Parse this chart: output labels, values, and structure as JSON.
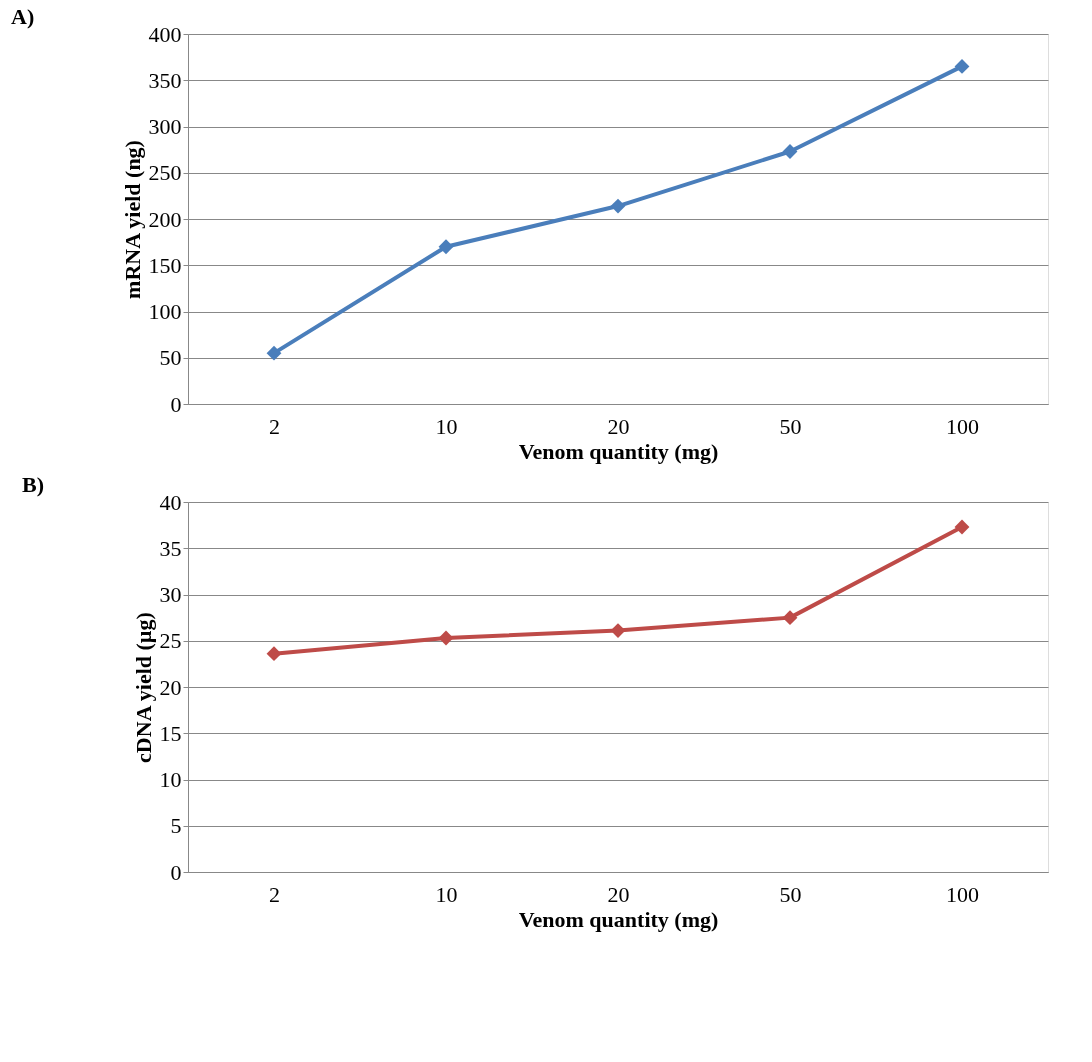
{
  "chart_data": [
    {
      "type": "line",
      "annotations": [
        "A)"
      ],
      "xlabel": "Venom quantity  (mg)",
      "ylabel": "mRNA yield (ng)",
      "categories": [
        "2",
        "10",
        "20",
        "50",
        "100"
      ],
      "series": [
        {
          "color": "#4a7ebb",
          "values": [
            55,
            170,
            214,
            273,
            365
          ]
        }
      ],
      "ylim": [
        0,
        400
      ],
      "yticks": [
        0,
        50,
        100,
        150,
        200,
        250,
        300,
        350,
        400
      ],
      "grid": "y",
      "legend": false,
      "marker": "diamond",
      "line_style": "solid"
    },
    {
      "type": "line",
      "annotations": [
        "B)"
      ],
      "xlabel": "Venom quantity  (mg)",
      "ylabel": "cDNA yield (µg)",
      "categories": [
        "2",
        "10",
        "20",
        "50",
        "100"
      ],
      "series": [
        {
          "color": "#be4b48",
          "values": [
            23.6,
            25.3,
            26.1,
            27.5,
            37.3
          ]
        }
      ],
      "ylim": [
        0,
        40
      ],
      "yticks": [
        0,
        5,
        10,
        15,
        20,
        25,
        30,
        35,
        40
      ],
      "grid": "y",
      "legend": false,
      "marker": "diamond",
      "line_style": "solid"
    }
  ]
}
